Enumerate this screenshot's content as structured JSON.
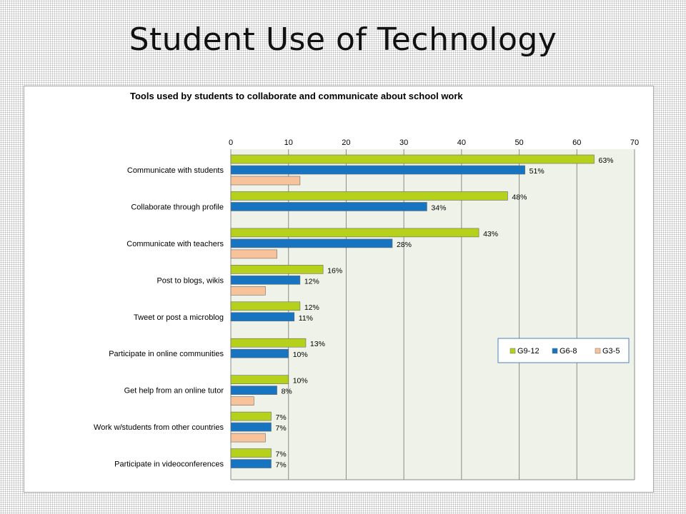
{
  "slide": {
    "title": "Student Use of Technology"
  },
  "chart_data": {
    "type": "bar",
    "orientation": "horizontal",
    "title": "Tools used by students  to collaborate and communicate about school work",
    "xlabel": "",
    "ylabel": "",
    "xlim": [
      0,
      70
    ],
    "x_ticks": [
      0,
      10,
      20,
      30,
      40,
      50,
      60,
      70
    ],
    "x_axis_position": "top",
    "grid": true,
    "legend_position": "right",
    "categories": [
      "Communicate with students",
      "Collaborate through profile",
      "Communicate with teachers",
      "Post to blogs, wikis",
      "Tweet or post a microblog",
      "Participate in online communities",
      "Get help from an online tutor",
      "Work w/students from other countries",
      "Participate in videoconferences"
    ],
    "series": [
      {
        "name": "G9-12",
        "color": "#b5d11b",
        "values": [
          63,
          48,
          43,
          16,
          12,
          13,
          10,
          7,
          7
        ],
        "labels": [
          "63%",
          "48%",
          "43%",
          "16%",
          "12%",
          "13%",
          "10%",
          "7%",
          "7%"
        ]
      },
      {
        "name": "G6-8",
        "color": "#1774c0",
        "values": [
          51,
          34,
          28,
          12,
          11,
          10,
          8,
          7,
          7
        ],
        "labels": [
          "51%",
          "34%",
          "28%",
          "12%",
          "11%",
          "10%",
          "8%",
          "7%",
          "7%"
        ]
      },
      {
        "name": "G3-5",
        "color": "#f8c39a",
        "values": [
          12,
          0,
          8,
          6,
          0,
          0,
          4,
          6,
          0
        ],
        "labels": [
          "",
          "",
          "",
          "",
          "",
          "",
          "",
          "",
          ""
        ]
      }
    ],
    "colors": {
      "plot_background": "#eef2e8",
      "gridline": "#8c8c8c",
      "legend_border": "#4f81bd"
    }
  }
}
